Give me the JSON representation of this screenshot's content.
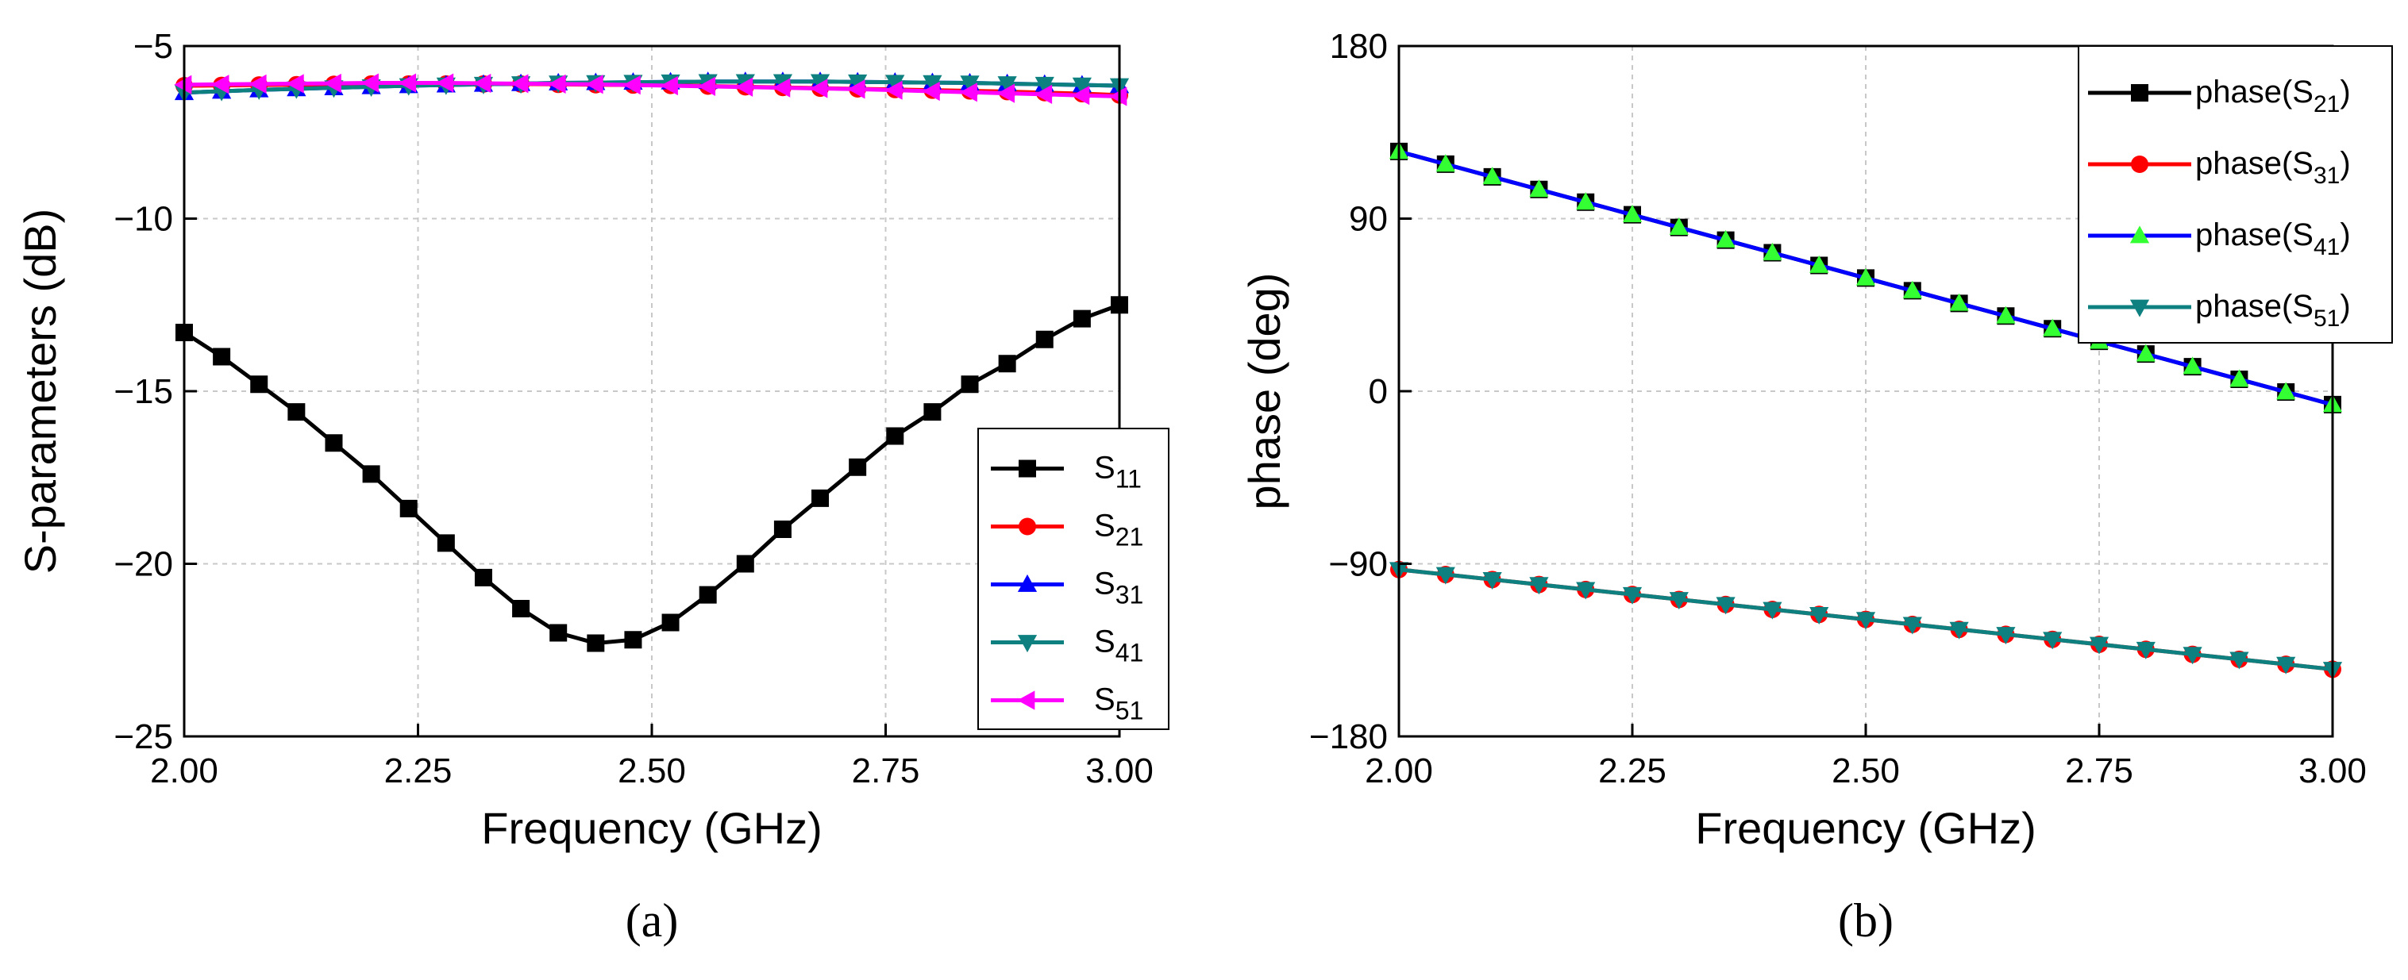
{
  "chart_data": [
    {
      "type": "line",
      "caption": "(a)",
      "xlabel": "Frequency (GHz)",
      "ylabel": "S-parameters (dB)",
      "xlim": [
        2.0,
        3.0
      ],
      "ylim": [
        -25,
        -5
      ],
      "xticks": [
        2.0,
        2.25,
        2.5,
        2.75,
        3.0
      ],
      "xtick_labels": [
        "2.00",
        "2.25",
        "2.50",
        "2.75",
        "3.00"
      ],
      "yticks": [
        -25,
        -20,
        -15,
        -10,
        -5
      ],
      "ytick_labels": [
        "−25",
        "−20",
        "−15",
        "−10",
        "−5"
      ],
      "grid": true,
      "legend_position": "center-right",
      "x": [
        2.0,
        2.04,
        2.08,
        2.12,
        2.16,
        2.2,
        2.24,
        2.28,
        2.32,
        2.36,
        2.4,
        2.44,
        2.48,
        2.52,
        2.56,
        2.6,
        2.64,
        2.68,
        2.72,
        2.76,
        2.8,
        2.84,
        2.88,
        2.92,
        2.96,
        3.0
      ],
      "series": [
        {
          "name": "S11",
          "label_main": "S",
          "label_sub": "11",
          "color": "#000000",
          "marker": "square",
          "values": [
            -13.3,
            -14.0,
            -14.8,
            -15.6,
            -16.5,
            -17.4,
            -18.4,
            -19.4,
            -20.4,
            -21.3,
            -22.0,
            -22.3,
            -22.2,
            -21.7,
            -20.9,
            -20.0,
            -19.0,
            -18.1,
            -17.2,
            -16.3,
            -15.6,
            -14.8,
            -14.2,
            -13.5,
            -12.9,
            -12.5
          ]
        },
        {
          "name": "S21",
          "label_main": "S",
          "label_sub": "21",
          "color": "#ff0000",
          "marker": "circle",
          "values": [
            -6.15,
            -6.14,
            -6.13,
            -6.12,
            -6.11,
            -6.1,
            -6.1,
            -6.1,
            -6.1,
            -6.1,
            -6.11,
            -6.12,
            -6.13,
            -6.14,
            -6.16,
            -6.18,
            -6.2,
            -6.22,
            -6.24,
            -6.26,
            -6.28,
            -6.3,
            -6.32,
            -6.35,
            -6.38,
            -6.42
          ]
        },
        {
          "name": "S31",
          "label_main": "S",
          "label_sub": "31",
          "color": "#0000ff",
          "marker": "triangle-up",
          "values": [
            -6.35,
            -6.31,
            -6.27,
            -6.24,
            -6.21,
            -6.18,
            -6.15,
            -6.13,
            -6.11,
            -6.09,
            -6.07,
            -6.06,
            -6.05,
            -6.04,
            -6.03,
            -6.03,
            -6.03,
            -6.03,
            -6.04,
            -6.05,
            -6.06,
            -6.07,
            -6.09,
            -6.11,
            -6.13,
            -6.15
          ]
        },
        {
          "name": "S41",
          "label_main": "S",
          "label_sub": "41",
          "color": "#0f8080",
          "marker": "triangle-down",
          "values": [
            -6.35,
            -6.31,
            -6.27,
            -6.24,
            -6.21,
            -6.18,
            -6.15,
            -6.13,
            -6.11,
            -6.09,
            -6.07,
            -6.06,
            -6.05,
            -6.04,
            -6.03,
            -6.03,
            -6.03,
            -6.03,
            -6.04,
            -6.05,
            -6.06,
            -6.07,
            -6.09,
            -6.11,
            -6.13,
            -6.15
          ]
        },
        {
          "name": "S51",
          "label_main": "S",
          "label_sub": "51",
          "color": "#ff00ff",
          "marker": "triangle-left",
          "values": [
            -6.12,
            -6.11,
            -6.1,
            -6.09,
            -6.08,
            -6.07,
            -6.07,
            -6.07,
            -6.08,
            -6.09,
            -6.1,
            -6.11,
            -6.13,
            -6.15,
            -6.17,
            -6.19,
            -6.21,
            -6.23,
            -6.25,
            -6.28,
            -6.31,
            -6.34,
            -6.37,
            -6.4,
            -6.43,
            -6.46
          ]
        }
      ]
    },
    {
      "type": "line",
      "caption": "(b)",
      "xlabel": "Frequency (GHz)",
      "ylabel": "phase (deg)",
      "xlim": [
        2.0,
        3.0
      ],
      "ylim": [
        -180,
        180
      ],
      "xticks": [
        2.0,
        2.25,
        2.5,
        2.75,
        3.0
      ],
      "xtick_labels": [
        "2.00",
        "2.25",
        "2.50",
        "2.75",
        "3.00"
      ],
      "yticks": [
        -180,
        -90,
        0,
        90,
        180
      ],
      "ytick_labels": [
        "−180",
        "−90",
        "0",
        "90",
        "180"
      ],
      "grid": true,
      "legend_position": "top-right",
      "x": [
        2.0,
        2.05,
        2.1,
        2.15,
        2.2,
        2.25,
        2.3,
        2.35,
        2.4,
        2.45,
        2.5,
        2.55,
        2.6,
        2.65,
        2.7,
        2.75,
        2.8,
        2.85,
        2.9,
        2.95,
        3.0
      ],
      "series": [
        {
          "name": "phase(S21)",
          "label_main": "phase(S",
          "label_sub": "21",
          "label_end": ")",
          "color": "#000000",
          "marker": "square",
          "values": [
            125,
            118.4,
            111.8,
            105.2,
            98.6,
            92,
            85.4,
            78.8,
            72.2,
            65.6,
            59,
            52.4,
            45.8,
            39.2,
            32.6,
            26,
            19.4,
            12.8,
            6.2,
            -0.4,
            -7
          ]
        },
        {
          "name": "phase(S31)",
          "label_main": "phase(S",
          "label_sub": "31",
          "label_end": ")",
          "color": "#ff0000",
          "marker": "circle",
          "values": [
            -93,
            -95.6,
            -98.2,
            -100.8,
            -103.4,
            -106,
            -108.6,
            -111.2,
            -113.8,
            -116.4,
            -119,
            -121.6,
            -124.2,
            -126.8,
            -129.4,
            -132,
            -134.6,
            -137.2,
            -139.8,
            -142.4,
            -145
          ]
        },
        {
          "name": "phase(S41)",
          "label_main": "phase(S",
          "label_sub": "41",
          "label_end": ")",
          "color": "#0000ff",
          "marker": "triangle-up",
          "values": [
            125,
            118.4,
            111.8,
            105.2,
            98.6,
            92,
            85.4,
            78.8,
            72.2,
            65.6,
            59,
            52.4,
            45.8,
            39.2,
            32.6,
            26,
            19.4,
            12.8,
            6.2,
            -0.4,
            -7
          ]
        },
        {
          "name": "phase(S51)",
          "label_main": "phase(S",
          "label_sub": "51",
          "label_end": ")",
          "color": "#0f8080",
          "marker": "triangle-down",
          "values": [
            -93,
            -95.6,
            -98.2,
            -100.8,
            -103.4,
            -106,
            -108.6,
            -111.2,
            -113.8,
            -116.4,
            -119,
            -121.6,
            -124.2,
            -126.8,
            -129.4,
            -132,
            -134.6,
            -137.2,
            -139.8,
            -142.4,
            -145
          ]
        }
      ]
    }
  ]
}
